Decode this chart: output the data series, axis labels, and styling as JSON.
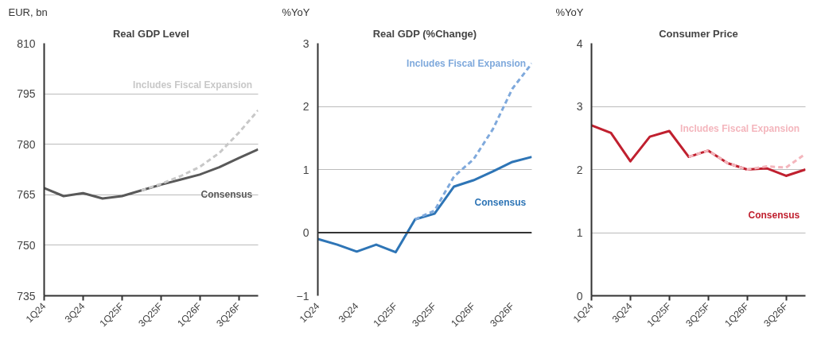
{
  "chart_data": [
    {
      "type": "line",
      "title": "Real GDP Level",
      "ylabel": "EUR, bn",
      "categories": [
        "1Q24",
        null,
        "3Q24",
        null,
        "1Q25F",
        null,
        "3Q25F",
        null,
        "1Q26F",
        null,
        "3Q26F",
        null
      ],
      "ylim": [
        735,
        810
      ],
      "yticks": [
        735,
        750,
        765,
        780,
        795,
        810
      ],
      "grid": "y",
      "series": [
        {
          "name": "Consensus",
          "color": "#595959",
          "line_style": "solid",
          "values": [
            767.0,
            764.6,
            765.5,
            763.9,
            764.6,
            766.3,
            768.0,
            769.5,
            771.0,
            773.2,
            775.9,
            778.5
          ]
        },
        {
          "name": "Includes Fiscal Expansion",
          "color": "#c8c8c8",
          "line_style": "dashed",
          "values": [
            null,
            null,
            null,
            null,
            null,
            766.3,
            768.2,
            770.5,
            773.3,
            777.4,
            783.4,
            790.1
          ]
        }
      ]
    },
    {
      "type": "line",
      "title": "Real GDP (%Change)",
      "ylabel": "%YoY",
      "categories": [
        "1Q24",
        null,
        "3Q24",
        null,
        "1Q25F",
        null,
        "3Q25F",
        null,
        "1Q26F",
        null,
        "3Q26F",
        null
      ],
      "ylim": [
        -1,
        3
      ],
      "yticks": [
        -1,
        0,
        1,
        2,
        3
      ],
      "grid": "y",
      "series": [
        {
          "name": "Consensus",
          "color": "#2e75b6",
          "line_style": "solid",
          "values": [
            -0.1,
            -0.19,
            -0.3,
            -0.19,
            -0.31,
            0.21,
            0.3,
            0.73,
            0.83,
            0.97,
            1.12,
            1.2
          ]
        },
        {
          "name": "Includes Fiscal Expansion",
          "color": "#7fa9dc",
          "line_style": "dashed",
          "values": [
            null,
            null,
            null,
            null,
            null,
            0.21,
            0.35,
            0.89,
            1.16,
            1.64,
            2.28,
            2.68
          ]
        }
      ]
    },
    {
      "type": "line",
      "title": "Consumer Price",
      "ylabel": "%YoY",
      "categories": [
        "1Q24",
        null,
        "3Q24",
        null,
        "1Q25F",
        null,
        "3Q25F",
        null,
        "1Q26F",
        null,
        "3Q26F",
        null
      ],
      "ylim": [
        0,
        4
      ],
      "yticks": [
        0,
        1,
        2,
        3,
        4
      ],
      "grid": "y",
      "series": [
        {
          "name": "Consensus",
          "color": "#c0202f",
          "line_style": "solid",
          "values": [
            2.7,
            2.58,
            2.13,
            2.52,
            2.61,
            2.2,
            2.3,
            2.1,
            2.0,
            2.02,
            1.9,
            2.0
          ]
        },
        {
          "name": "Includes Fiscal Expansion",
          "color": "#f4b6bd",
          "line_style": "dashed",
          "values": [
            null,
            null,
            null,
            null,
            null,
            2.2,
            2.3,
            2.1,
            2.0,
            2.05,
            2.03,
            2.25
          ]
        }
      ]
    }
  ]
}
